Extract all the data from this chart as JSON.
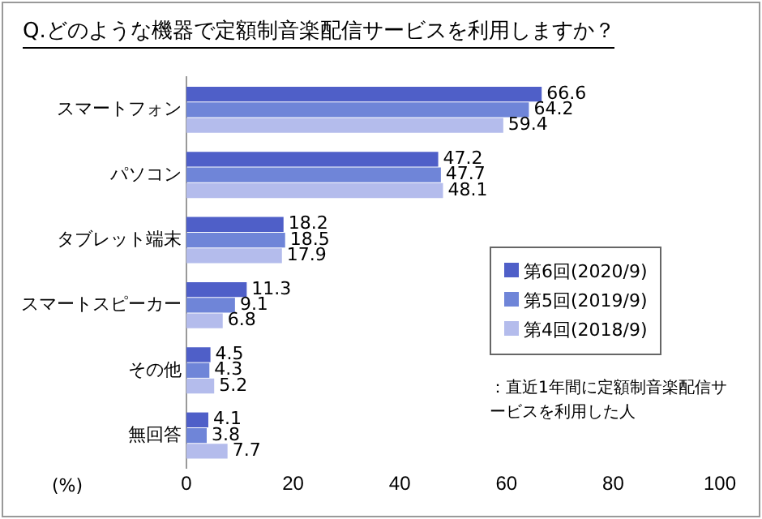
{
  "chart_data": {
    "type": "bar",
    "orientation": "horizontal",
    "title": "Q.どのような機器で定額制音楽配信サービスを利用しますか？",
    "xlabel": "(%)",
    "categories": [
      "スマートフォン",
      "パソコン",
      "タブレット端末",
      "スマートスピーカー",
      "その他",
      "無回答"
    ],
    "series": [
      {
        "name": "第6回(2020/9)",
        "color": "#4f5fc8",
        "values": [
          66.6,
          47.2,
          18.2,
          11.3,
          4.5,
          4.1
        ]
      },
      {
        "name": "第5回(2019/9)",
        "color": "#6f85d8",
        "values": [
          64.2,
          47.7,
          18.5,
          9.1,
          4.3,
          3.8
        ]
      },
      {
        "name": "第4回(2018/9)",
        "color": "#b4bcec",
        "values": [
          59.4,
          48.1,
          17.9,
          6.8,
          5.2,
          7.7
        ]
      }
    ],
    "xlim": [
      0,
      100
    ],
    "xticks": [
      0,
      20,
      40,
      60,
      80,
      100
    ],
    "grid": false,
    "legend": "right",
    "data_labels": true,
    "annotations": [
      "：直近1年間に定額制音楽配信サービスを利用した人"
    ]
  }
}
